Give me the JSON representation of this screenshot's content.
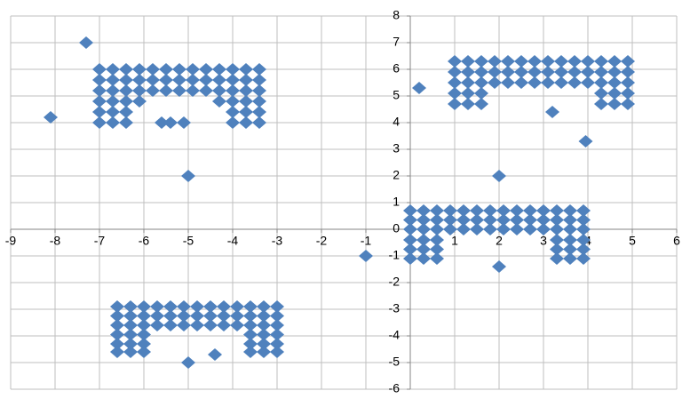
{
  "chart_data": {
    "type": "scatter",
    "color": "#4f81bd",
    "grid": true,
    "xlim": [
      -9,
      6
    ],
    "xticks": [
      -9,
      -8,
      -7,
      -6,
      -5,
      -4,
      -3,
      -2,
      -1,
      0,
      1,
      2,
      3,
      4,
      5,
      6
    ],
    "ylim": [
      -6,
      8
    ],
    "yticks": [
      -6,
      -5,
      -4,
      -3,
      -2,
      -1,
      0,
      1,
      2,
      3,
      4,
      5,
      6,
      7,
      8
    ],
    "x": [
      -7,
      -6.7,
      -6.4,
      -6.1,
      -5.8,
      -5.5,
      -5.2,
      -4.9,
      -4.6,
      -4.3,
      -4,
      -3.7,
      -3.4,
      -7,
      -6.7,
      -6.4,
      -6.1,
      -5.8,
      -5.5,
      -5.2,
      -4.9,
      -4.6,
      -4.3,
      -4,
      -3.7,
      -3.4,
      -7,
      -6.7,
      -6.4,
      -6.1,
      -5.8,
      -5.5,
      -5.2,
      -4.9,
      -4.6,
      -4.3,
      -4,
      -3.7,
      -3.4,
      -7,
      -6.7,
      -6.4,
      -4,
      -3.7,
      -3.4,
      -7,
      -6.7,
      -6.4,
      -4,
      -3.7,
      -3.4,
      -7,
      -6.7,
      -6.4,
      -6.1,
      -4.3,
      -4,
      -3.7,
      -3.4,
      1,
      1.3,
      1.6,
      1.9,
      2.2,
      2.5,
      2.8,
      3.1,
      3.4,
      3.7,
      4,
      4.3,
      4.6,
      4.9,
      1,
      1.3,
      1.6,
      1.9,
      2.2,
      2.5,
      2.8,
      3.1,
      3.4,
      3.7,
      4,
      4.3,
      4.6,
      4.9,
      1,
      1.3,
      1.6,
      1.9,
      2.2,
      2.5,
      2.8,
      3.1,
      3.4,
      3.7,
      4,
      4.3,
      4.6,
      4.9,
      1,
      1.3,
      1.6,
      4.3,
      4.6,
      4.9,
      1,
      1.3,
      1.6,
      4.3,
      4.6,
      4.9,
      0,
      0.3,
      0.6,
      0.9,
      1.2,
      1.5,
      1.8,
      2.1,
      2.4,
      2.7,
      3,
      3.3,
      3.6,
      3.9,
      0,
      0.3,
      0.6,
      0.9,
      1.2,
      1.5,
      1.8,
      2.1,
      2.4,
      2.7,
      3,
      3.3,
      3.6,
      3.9,
      0,
      0.3,
      0.6,
      0.9,
      1.2,
      1.5,
      1.8,
      2.1,
      2.4,
      2.7,
      3,
      3.3,
      3.6,
      3.9,
      0,
      0.3,
      0.6,
      3.3,
      3.6,
      3.9,
      0,
      0.3,
      0.6,
      3.3,
      3.6,
      3.9,
      0,
      0.3,
      0.6,
      3.3,
      3.6,
      3.9,
      -6.6,
      -6.3,
      -6,
      -5.7,
      -5.4,
      -5.1,
      -4.8,
      -4.5,
      -4.2,
      -3.9,
      -3.6,
      -3.3,
      -3,
      -6.6,
      -6.3,
      -6,
      -5.7,
      -5.4,
      -5.1,
      -4.8,
      -4.5,
      -4.2,
      -3.9,
      -3.6,
      -3.3,
      -3,
      -6.6,
      -6.3,
      -6,
      -5.7,
      -5.4,
      -5.1,
      -4.8,
      -4.5,
      -4.2,
      -3.9,
      -3.6,
      -3.3,
      -3,
      -6.6,
      -6.3,
      -6,
      -3.6,
      -3.3,
      -3,
      -6.6,
      -6.3,
      -6,
      -3.6,
      -3.3,
      -3,
      -6.6,
      -6.3,
      -6,
      -3.6,
      -3.3,
      -3,
      -7.3,
      -8.1,
      -5.6,
      -5.4,
      -5.1,
      -5,
      0.2,
      3.2,
      3.95,
      2,
      2,
      -1,
      -5,
      -4.4
    ],
    "values": [
      6,
      6,
      6,
      6,
      6,
      6,
      6,
      6,
      6,
      6,
      6,
      6,
      6,
      5.6,
      5.6,
      5.6,
      5.6,
      5.6,
      5.6,
      5.6,
      5.6,
      5.6,
      5.6,
      5.6,
      5.6,
      5.6,
      5.2,
      5.2,
      5.2,
      5.2,
      5.2,
      5.2,
      5.2,
      5.2,
      5.2,
      5.2,
      5.2,
      5.2,
      5.2,
      4,
      4,
      4,
      4,
      4,
      4,
      4.4,
      4.4,
      4.4,
      4.4,
      4.4,
      4.4,
      4.8,
      4.8,
      4.8,
      4.8,
      4.8,
      4.8,
      4.8,
      4.8,
      6.3,
      6.3,
      6.3,
      6.3,
      6.3,
      6.3,
      6.3,
      6.3,
      6.3,
      6.3,
      6.3,
      6.3,
      6.3,
      6.3,
      5.9,
      5.9,
      5.9,
      5.9,
      5.9,
      5.9,
      5.9,
      5.9,
      5.9,
      5.9,
      5.9,
      5.9,
      5.9,
      5.9,
      5.5,
      5.5,
      5.5,
      5.5,
      5.5,
      5.5,
      5.5,
      5.5,
      5.5,
      5.5,
      5.5,
      5.5,
      5.5,
      5.5,
      5.1,
      5.1,
      5.1,
      5.1,
      5.1,
      5.1,
      4.7,
      4.7,
      4.7,
      4.7,
      4.7,
      4.7,
      0.7,
      0.7,
      0.7,
      0.7,
      0.7,
      0.7,
      0.7,
      0.7,
      0.7,
      0.7,
      0.7,
      0.7,
      0.7,
      0.7,
      0.35,
      0.35,
      0.35,
      0.35,
      0.35,
      0.35,
      0.35,
      0.35,
      0.35,
      0.35,
      0.35,
      0.35,
      0.35,
      0.35,
      0,
      0,
      0,
      0,
      0,
      0,
      0,
      0,
      0,
      0,
      0,
      0,
      0,
      0,
      -0.4,
      -0.4,
      -0.4,
      -0.4,
      -0.4,
      -0.4,
      -0.75,
      -0.75,
      -0.75,
      -0.75,
      -0.75,
      -0.75,
      -1.1,
      -1.1,
      -1.1,
      -1.1,
      -1.1,
      -1.1,
      -2.9,
      -2.9,
      -2.9,
      -2.9,
      -2.9,
      -2.9,
      -2.9,
      -2.9,
      -2.9,
      -2.9,
      -2.9,
      -2.9,
      -2.9,
      -3.25,
      -3.25,
      -3.25,
      -3.25,
      -3.25,
      -3.25,
      -3.25,
      -3.25,
      -3.25,
      -3.25,
      -3.25,
      -3.25,
      -3.25,
      -3.6,
      -3.6,
      -3.6,
      -3.6,
      -3.6,
      -3.6,
      -3.6,
      -3.6,
      -3.6,
      -3.6,
      -3.6,
      -3.6,
      -3.6,
      -3.95,
      -3.95,
      -3.95,
      -3.95,
      -3.95,
      -3.95,
      -4.3,
      -4.3,
      -4.3,
      -4.3,
      -4.3,
      -4.3,
      -4.6,
      -4.6,
      -4.6,
      -4.6,
      -4.6,
      -4.6,
      7,
      4.2,
      4,
      4,
      4,
      2,
      5.3,
      4.4,
      3.3,
      2,
      -1.4,
      -1,
      -5,
      -4.7
    ]
  }
}
